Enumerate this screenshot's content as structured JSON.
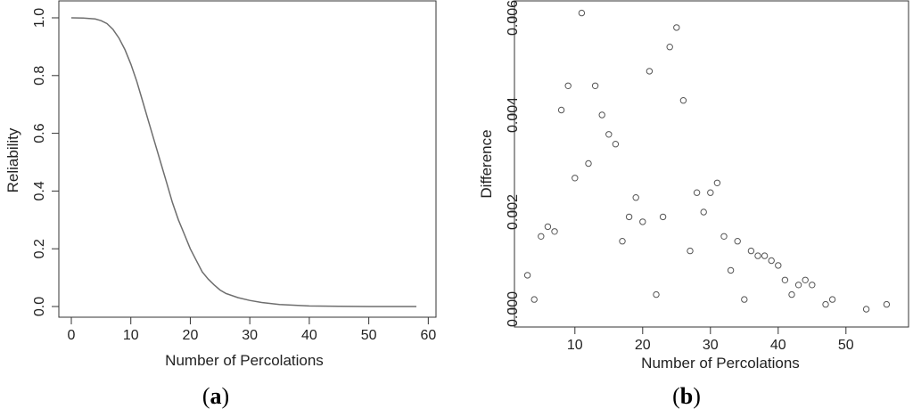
{
  "chart_data": [
    {
      "type": "line",
      "panel_label": {
        "open": "(",
        "letter": "a",
        "close": ")"
      },
      "xlabel": "Number of Percolations",
      "ylabel": "Reliability",
      "xlim": [
        0,
        58
      ],
      "ylim": [
        0,
        1
      ],
      "xticks": [
        0,
        10,
        20,
        30,
        40,
        50,
        60
      ],
      "yticks": [
        0.0,
        0.2,
        0.4,
        0.6,
        0.8,
        1.0
      ],
      "ytick_labels": [
        "0.0",
        "0.2",
        "0.4",
        "0.6",
        "0.8",
        "1.0"
      ],
      "line_color": "#6e6e6e",
      "x": [
        0,
        2,
        4,
        5,
        6,
        7,
        8,
        9,
        10,
        11,
        12,
        13,
        14,
        15,
        16,
        17,
        18,
        19,
        20,
        21,
        22,
        23,
        24,
        25,
        26,
        28,
        30,
        32,
        35,
        40,
        45,
        50,
        58
      ],
      "y": [
        1.0,
        0.999,
        0.996,
        0.99,
        0.98,
        0.96,
        0.93,
        0.89,
        0.84,
        0.78,
        0.71,
        0.64,
        0.57,
        0.5,
        0.43,
        0.36,
        0.3,
        0.25,
        0.2,
        0.16,
        0.12,
        0.095,
        0.075,
        0.057,
        0.045,
        0.031,
        0.021,
        0.014,
        0.007,
        0.002,
        0.0005,
        0.0001,
        0.0
      ]
    },
    {
      "type": "scatter",
      "panel_label": {
        "open": "(",
        "letter": "b",
        "close": ")"
      },
      "xlabel": "Number of Percolations",
      "ylabel": "Difference",
      "xlim": [
        2,
        57
      ],
      "ylim": [
        0,
        0.006
      ],
      "xticks": [
        10,
        20,
        30,
        40,
        50
      ],
      "yticks": [
        0.0,
        0.002,
        0.004,
        0.006
      ],
      "ytick_labels": [
        "0.000",
        "0.002",
        "0.004",
        "0.006"
      ],
      "marker": "open-circle",
      "marker_color": "#555555",
      "points": [
        [
          3,
          0.0007
        ],
        [
          4,
          0.0002
        ],
        [
          5,
          0.0015
        ],
        [
          6,
          0.0017
        ],
        [
          7,
          0.0016
        ],
        [
          8,
          0.0041
        ],
        [
          9,
          0.0046
        ],
        [
          10,
          0.0027
        ],
        [
          11,
          0.0061
        ],
        [
          12,
          0.003
        ],
        [
          13,
          0.0046
        ],
        [
          14,
          0.004
        ],
        [
          15,
          0.0036
        ],
        [
          16,
          0.0034
        ],
        [
          17,
          0.0014
        ],
        [
          18,
          0.0019
        ],
        [
          19,
          0.0023
        ],
        [
          20,
          0.0018
        ],
        [
          21,
          0.0049
        ],
        [
          22,
          0.0003
        ],
        [
          23,
          0.0019
        ],
        [
          24,
          0.0054
        ],
        [
          25,
          0.0058
        ],
        [
          26,
          0.0043
        ],
        [
          27,
          0.0012
        ],
        [
          28,
          0.0024
        ],
        [
          29,
          0.002
        ],
        [
          30,
          0.0024
        ],
        [
          31,
          0.0026
        ],
        [
          32,
          0.0015
        ],
        [
          33,
          0.0008
        ],
        [
          34,
          0.0014
        ],
        [
          35,
          0.0002
        ],
        [
          36,
          0.0012
        ],
        [
          37,
          0.0011
        ],
        [
          38,
          0.0011
        ],
        [
          39,
          0.001
        ],
        [
          40,
          0.0009
        ],
        [
          41,
          0.0006
        ],
        [
          42,
          0.0003
        ],
        [
          43,
          0.0005
        ],
        [
          44,
          0.0006
        ],
        [
          45,
          0.0005
        ],
        [
          47,
          0.0001
        ],
        [
          48,
          0.0002
        ],
        [
          53,
          0.0
        ],
        [
          56,
          0.0001
        ]
      ]
    }
  ]
}
